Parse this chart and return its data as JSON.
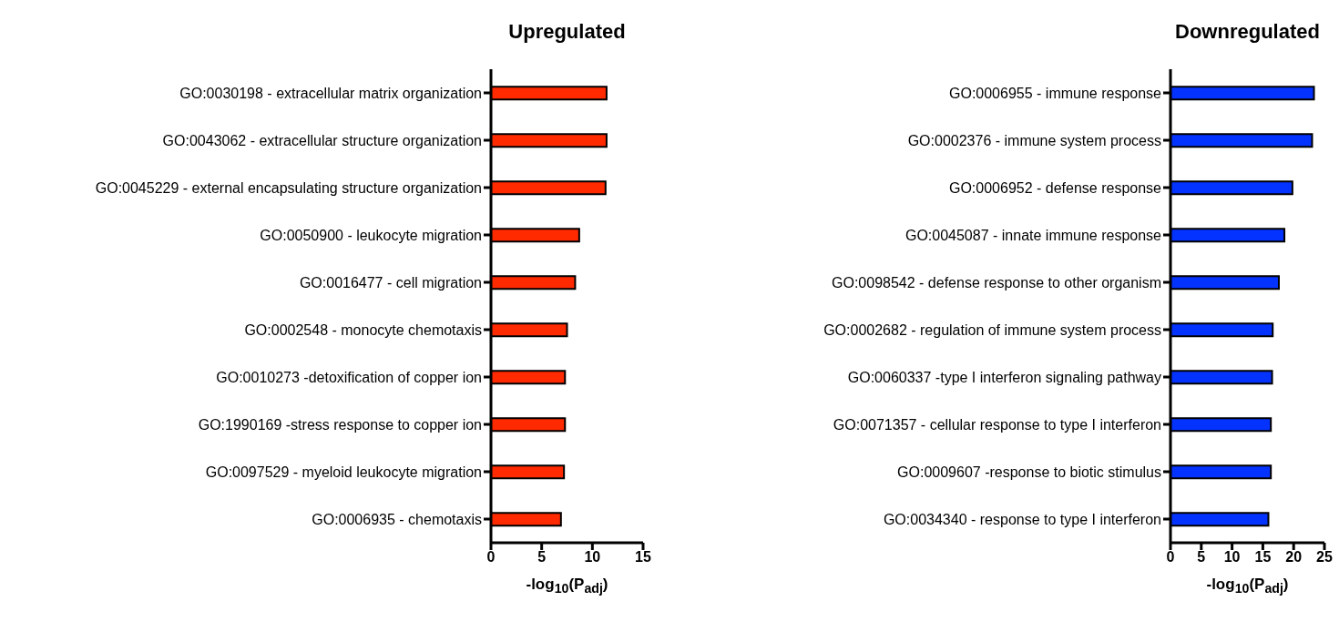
{
  "chart_data": [
    {
      "type": "bar",
      "orientation": "horizontal",
      "title": "Upregulated",
      "xlabel": "-log$_{10}$(P$_{adj}$)",
      "categories": [
        "GO:0030198 - extracellular matrix organization",
        "GO:0043062 - extracellular structure organization",
        "GO:0045229 - external encapsulating structure organization",
        "GO:0050900 - leukocyte migration",
        "GO:0016477 - cell migration",
        "GO:0002548 - monocyte chemotaxis",
        "GO:0010273 -detoxification of copper ion",
        "GO:1990169 -stress response to copper ion",
        "GO:0097529 - myeloid leukocyte migration",
        "GO:0006935 - chemotaxis"
      ],
      "values": [
        11.4,
        11.4,
        11.3,
        8.7,
        8.3,
        7.5,
        7.3,
        7.3,
        7.2,
        6.9
      ],
      "color": "#ff2a00",
      "xlim": [
        0,
        15
      ],
      "xticks": [
        0,
        5,
        10,
        15
      ]
    },
    {
      "type": "bar",
      "orientation": "horizontal",
      "title": "Downregulated",
      "xlabel": "-log$_{10}$(P$_{adj}$)",
      "categories": [
        "GO:0006955 - immune response",
        "GO:0002376 - immune system process",
        "GO:0006952 - defense response",
        "GO:0045087 - innate immune response",
        "GO:0098542 - defense response to other organism",
        "GO:0002682 - regulation of immune system process",
        "GO:0060337 -type I interferon signaling pathway",
        "GO:0071357 - cellular response to type I interferon",
        "GO:0009607 -response to biotic stimulus",
        "GO:0034340 - response to type I interferon"
      ],
      "values": [
        23.3,
        23.0,
        19.8,
        18.5,
        17.6,
        16.6,
        16.5,
        16.3,
        16.3,
        15.9
      ],
      "color": "#0433ff",
      "xlim": [
        0,
        25
      ],
      "xticks": [
        0,
        5,
        10,
        15,
        20,
        25
      ]
    }
  ]
}
